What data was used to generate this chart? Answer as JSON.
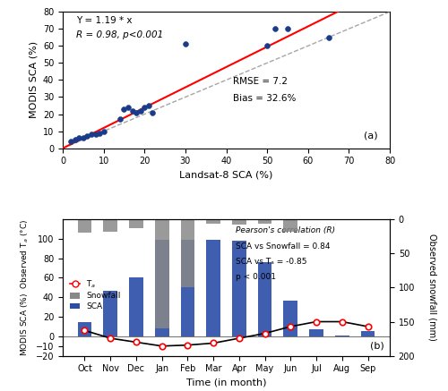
{
  "scatter_x": [
    2,
    3,
    4,
    5,
    6,
    7,
    8,
    9,
    10,
    14,
    15,
    16,
    17,
    18,
    19,
    20,
    21,
    22,
    30,
    50,
    52,
    55,
    65
  ],
  "scatter_y": [
    4,
    5,
    6,
    6,
    7,
    8,
    8,
    9,
    10,
    17,
    23,
    24,
    22,
    21,
    22,
    24,
    25,
    21,
    61,
    60,
    70,
    70,
    65
  ],
  "fit_eq": "Y = 1.19 * x",
  "fit_r": "R = 0.98, p<0.001",
  "rmse_text": "RMSE = 7.2",
  "bias_text": "Bias = 32.6%",
  "panel_a_label": "(a)",
  "xlabel_a": "Landsat-8 SCA (%)",
  "ylabel_a": "MODIS SCA (%)",
  "xlim_a": [
    0,
    80
  ],
  "ylim_a": [
    0,
    80
  ],
  "months": [
    "Oct",
    "Nov",
    "Dec",
    "Jan",
    "Feb",
    "Mar",
    "Apr",
    "May",
    "Jun",
    "Jul",
    "Aug",
    "Sep"
  ],
  "sca_values": [
    15,
    47,
    60,
    99,
    99,
    99,
    98,
    76,
    37,
    7,
    1,
    5
  ],
  "snowfall_values": [
    20,
    18,
    13,
    160,
    100,
    7,
    8,
    6,
    18,
    0,
    0,
    0
  ],
  "ta_values": [
    6,
    -2,
    -6,
    -10,
    -9,
    -7,
    -2,
    3,
    10,
    15,
    15,
    10
  ],
  "sca_color": "#2b4ca8",
  "snowfall_color": "#888888",
  "ta_color": "#cc0000",
  "panel_b_label": "(b)",
  "xlabel_b": "Time (in month)",
  "ylabel_b_left": "MODIS SCA (%)  Observed T",
  "ylabel_b_right": "Observed snowfall (mm)",
  "pearson_text": "Pearson's correlation (R)",
  "corr_sca_snow": "SCA vs Snowfall = 0.84",
  "corr_sca_ta": "SCA vs Tₐ = -0.85",
  "p_value_text": "p < 0.001"
}
